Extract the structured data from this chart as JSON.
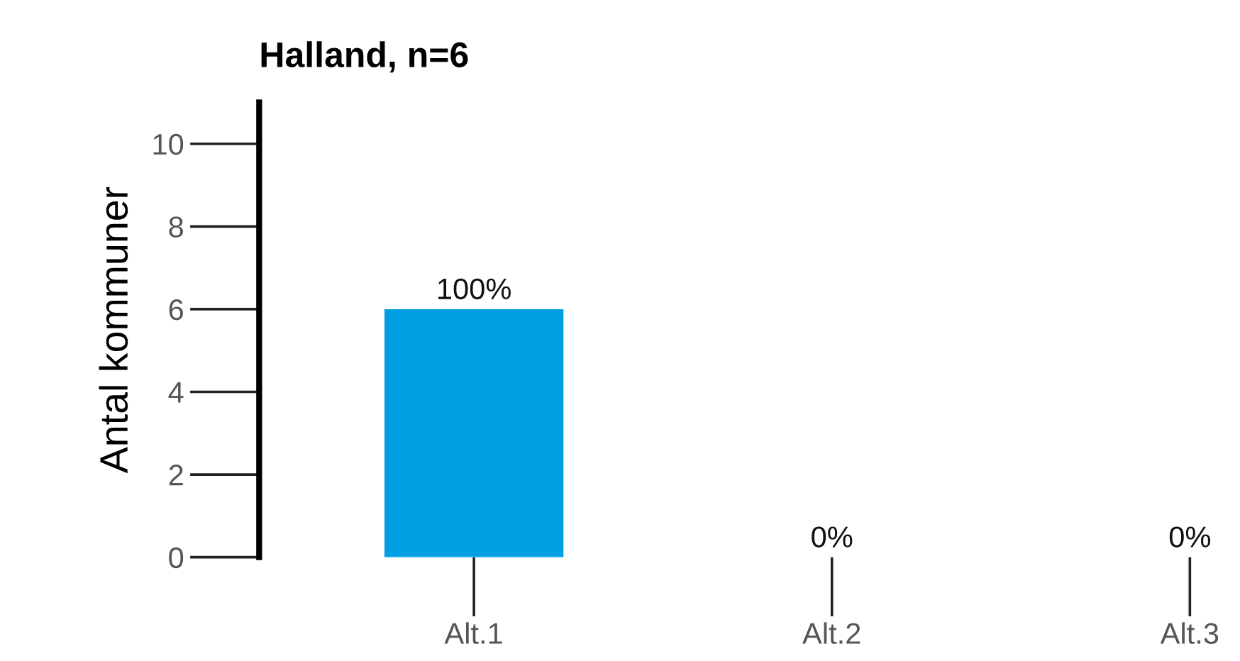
{
  "chart_data": {
    "type": "bar",
    "title": "Halland, n=6",
    "ylabel": "Antal kommuner",
    "categories": [
      "Alt.1",
      "Alt.2",
      "Alt.3"
    ],
    "values": [
      6,
      0,
      0
    ],
    "annotations": [
      {
        "text": "100%",
        "x": "Alt.1",
        "y": 6
      },
      {
        "text": "0%",
        "x": "Alt.2",
        "y": 0
      },
      {
        "text": "0%",
        "x": "Alt.3",
        "y": 0
      }
    ],
    "color": "#009fe3",
    "ylim": [
      0,
      11
    ],
    "yticks": [
      0,
      2,
      4,
      6,
      8,
      10
    ],
    "grid": false,
    "legend": false
  }
}
